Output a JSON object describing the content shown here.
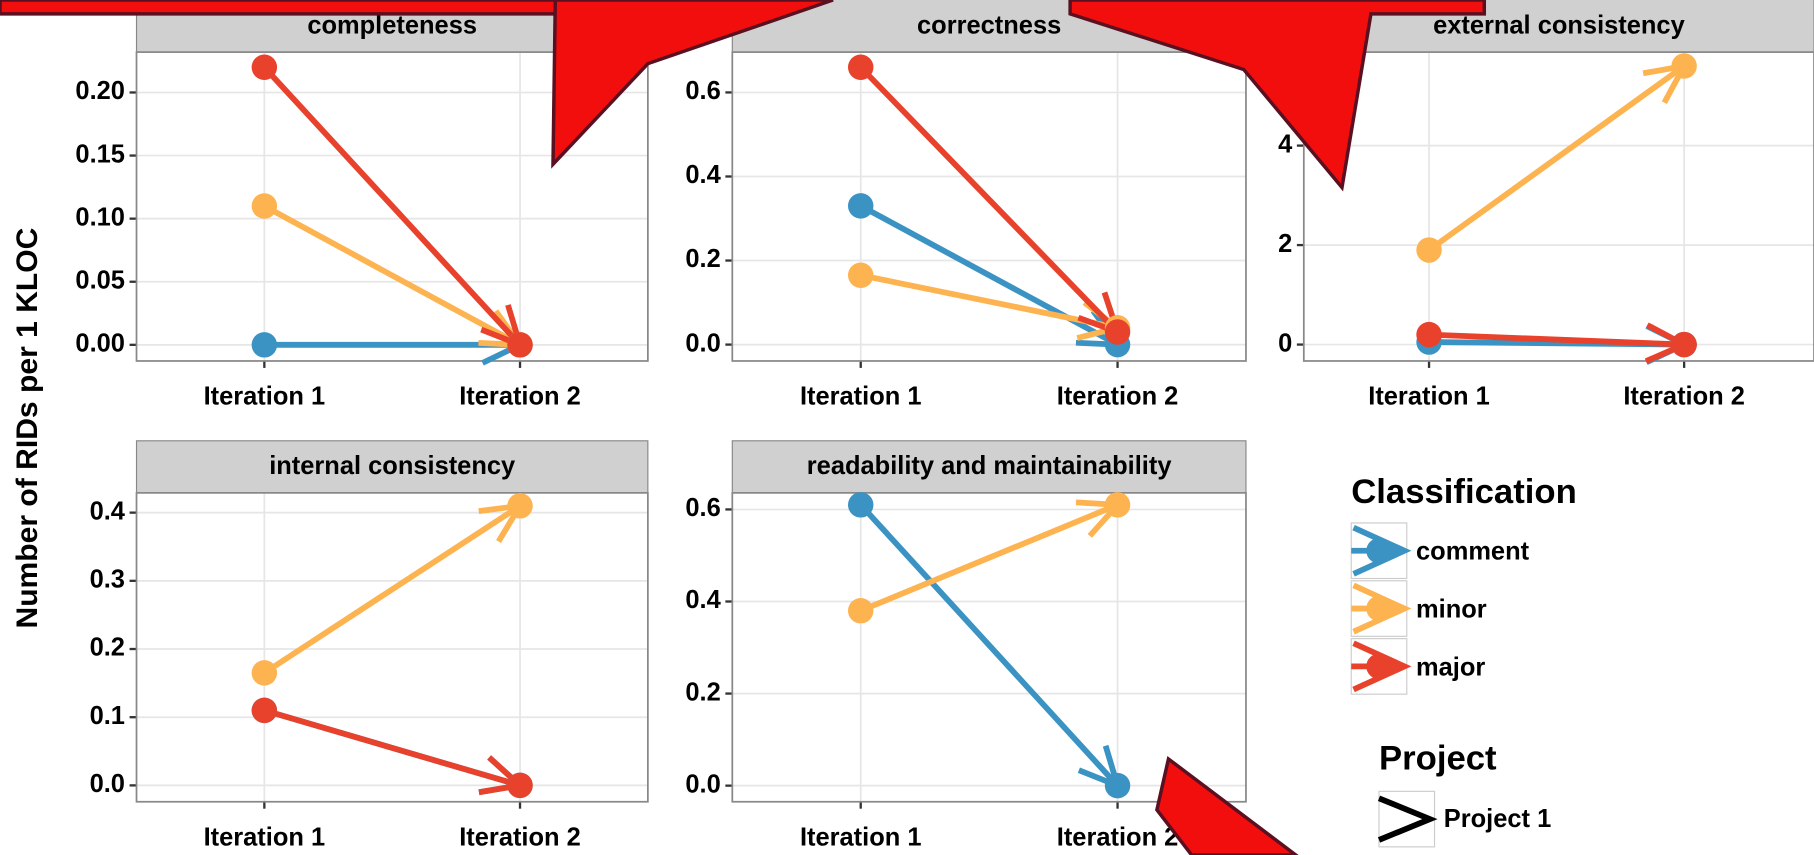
{
  "shared": {
    "ylabel": "Number of RIDs per 1 KLOC",
    "legend_title": "Classification",
    "project_title": "Project",
    "project_name": "Project 1"
  },
  "chart_data": [
    {
      "type": "line",
      "title": "completeness",
      "categories": [
        "Iteration 1",
        "Iteration 2"
      ],
      "series": [
        {
          "name": "comment",
          "color": "#3a93c3",
          "values": [
            0,
            0
          ]
        },
        {
          "name": "minor",
          "color": "#fdb34f",
          "values": [
            0.11,
            0
          ]
        },
        {
          "name": "major",
          "color": "#e8412c",
          "values": [
            0.22,
            0
          ]
        }
      ],
      "ylim": [
        -0.0128,
        0.232
      ],
      "yticks": [
        {
          "value": 0,
          "label": "0.00"
        },
        {
          "value": 0.05,
          "label": "0.05"
        },
        {
          "value": 0.1,
          "label": "0.10"
        },
        {
          "value": 0.15,
          "label": "0.15"
        },
        {
          "value": 0.2,
          "label": "0.20"
        }
      ],
      "grid": true
    },
    {
      "type": "line",
      "title": "correctness",
      "categories": [
        "Iteration 1",
        "Iteration 2"
      ],
      "series": [
        {
          "name": "comment",
          "color": "#3a93c3",
          "values": [
            0.33,
            0
          ]
        },
        {
          "name": "minor",
          "color": "#fdb34f",
          "values": [
            0.165,
            0.04
          ]
        },
        {
          "name": "major",
          "color": "#e8412c",
          "values": [
            0.66,
            0.03
          ]
        }
      ],
      "ylim": [
        -0.039,
        0.696
      ],
      "yticks": [
        {
          "value": 0,
          "label": "0.0"
        },
        {
          "value": 0.2,
          "label": "0.2"
        },
        {
          "value": 0.4,
          "label": "0.4"
        },
        {
          "value": 0.6,
          "label": "0.6"
        }
      ],
      "grid": true
    },
    {
      "type": "line",
      "title": "external consistency",
      "categories": [
        "Iteration 1",
        "Iteration 2"
      ],
      "series": [
        {
          "name": "comment",
          "color": "#3a93c3",
          "values": [
            0.05,
            0
          ]
        },
        {
          "name": "minor",
          "color": "#fdb34f",
          "values": [
            1.9,
            5.6
          ]
        },
        {
          "name": "major",
          "color": "#e8412c",
          "values": [
            0.2,
            0
          ]
        }
      ],
      "ylim": [
        -0.33,
        5.88
      ],
      "yticks": [
        0,
        2,
        4
      ],
      "grid": true
    },
    {
      "type": "line",
      "title": "internal consistency",
      "categories": [
        "Iteration 1",
        "Iteration 2"
      ],
      "series": [
        {
          "name": "comment",
          "color": "#3a93c3",
          "values": [
            0.11,
            0
          ]
        },
        {
          "name": "minor",
          "color": "#fdb34f",
          "values": [
            0.165,
            0.41
          ]
        },
        {
          "name": "major",
          "color": "#e8412c",
          "values": [
            0.11,
            0
          ]
        }
      ],
      "ylim": [
        -0.024,
        0.429
      ],
      "yticks": [
        {
          "value": 0,
          "label": "0.0"
        },
        0.1,
        0.2,
        0.3,
        0.4
      ],
      "grid": true
    },
    {
      "type": "line",
      "title": "readability and maintainability",
      "categories": [
        "Iteration 1",
        "Iteration 2"
      ],
      "series": [
        {
          "name": "comment",
          "color": "#3a93c3",
          "values": [
            0.61,
            0
          ]
        },
        {
          "name": "minor",
          "color": "#fdb34f",
          "values": [
            0.38,
            0.61
          ]
        },
        {
          "name": "major",
          "color": "#e8412c",
          "values": [
            null,
            null
          ]
        }
      ],
      "ylim": [
        -0.035,
        0.636
      ],
      "yticks": [
        {
          "value": 0,
          "label": "0.0"
        },
        0.2,
        0.4,
        0.6
      ],
      "grid": true
    }
  ]
}
